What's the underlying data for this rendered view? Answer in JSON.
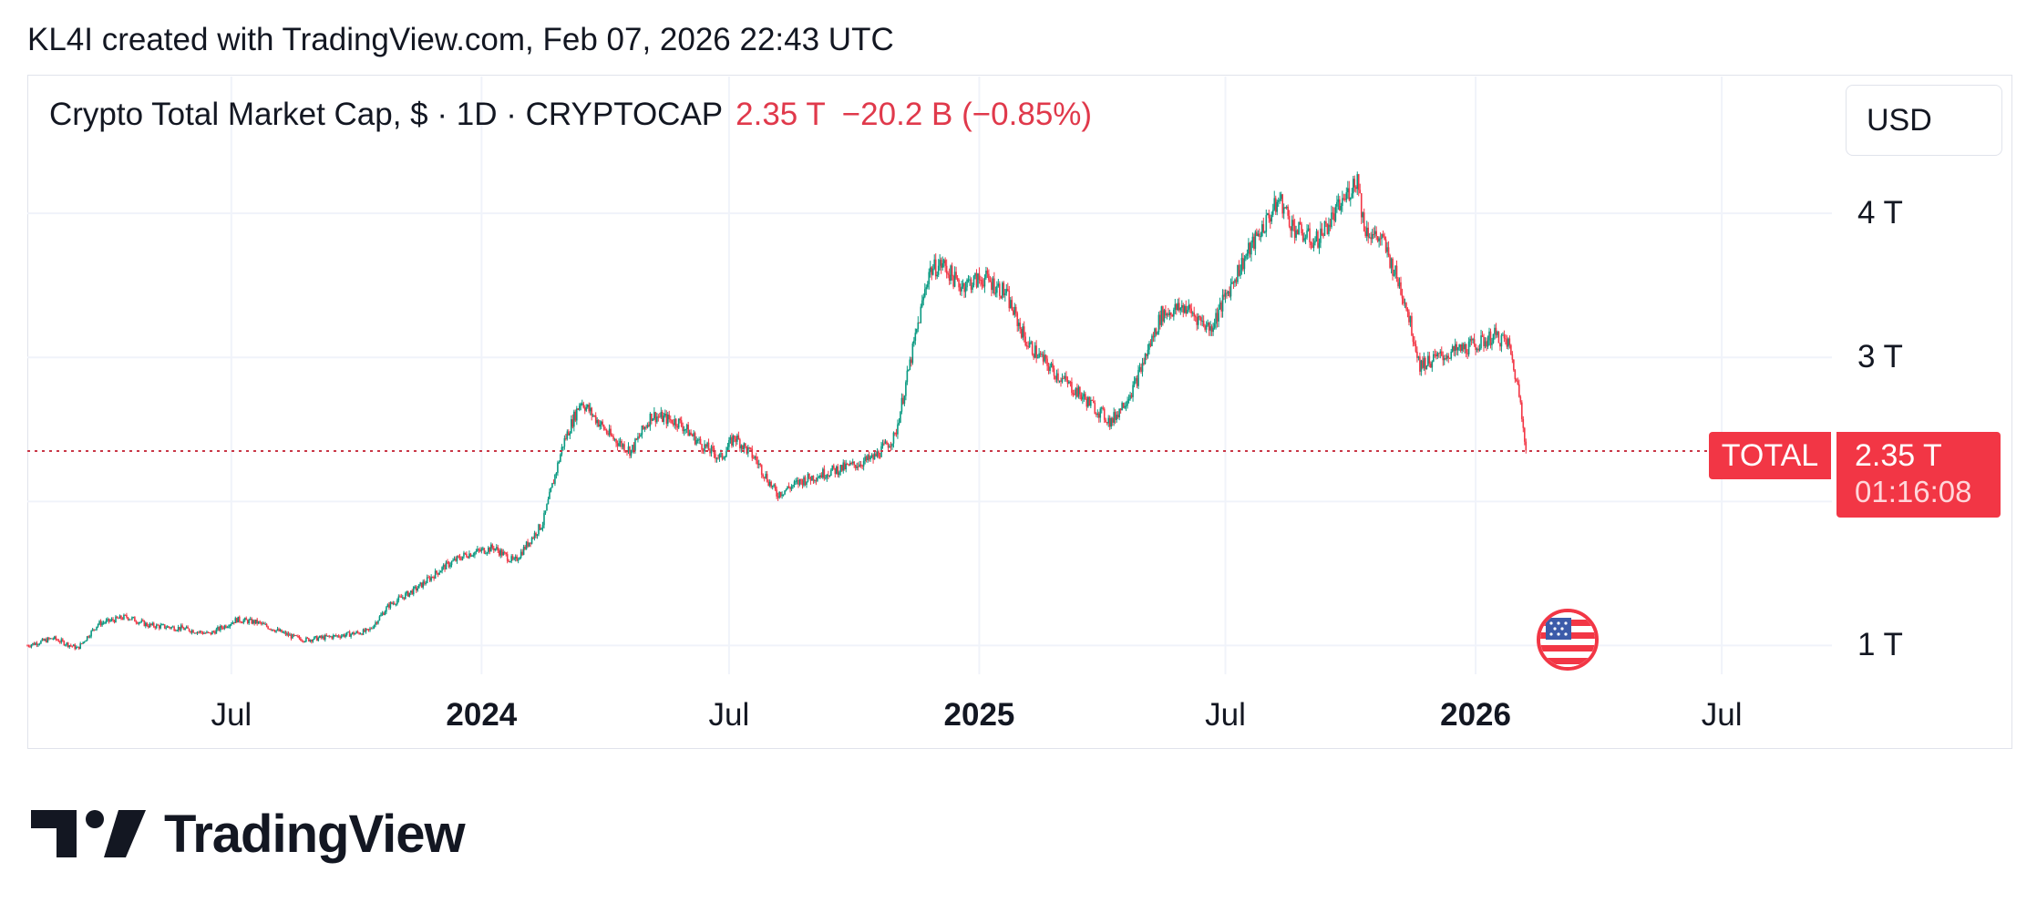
{
  "header": {
    "attribution": "KL4I created with TradingView.com, Feb 07, 2026 22:43 UTC"
  },
  "legend": {
    "symbol": "Crypto Total Market Cap, $ · 1D · CRYPTOCAP",
    "last": "2.35 T",
    "change": "−20.2 B (−0.85%)"
  },
  "toolbar": {
    "currency_label": "USD"
  },
  "price_tag": {
    "series": "TOTAL",
    "price": "2.35 T",
    "countdown": "01:16:08"
  },
  "brand": {
    "name": "TradingView"
  },
  "colors": {
    "up": "#089981",
    "down": "#f23645",
    "grid": "#f0f3fa",
    "text": "#131722"
  },
  "chart_data": {
    "type": "line",
    "style": "candlestick",
    "title": "Crypto Total Market Cap, $ · 1D · CRYPTOCAP",
    "y_unit": "T",
    "ylim": [
      0.8,
      4.95
    ],
    "y_ticks": [
      {
        "value": 1,
        "label": "1 T"
      },
      {
        "value": 3,
        "label": "3 T"
      },
      {
        "value": 4,
        "label": "4 T"
      }
    ],
    "xlim": [
      "2023-02-01",
      "2026-09-20"
    ],
    "x_ticks": [
      {
        "date": "2023-07-01",
        "label": "Jul",
        "bold": false
      },
      {
        "date": "2024-01-01",
        "label": "2024",
        "bold": true
      },
      {
        "date": "2024-07-01",
        "label": "Jul",
        "bold": false
      },
      {
        "date": "2025-01-01",
        "label": "2025",
        "bold": true
      },
      {
        "date": "2025-07-01",
        "label": "Jul",
        "bold": false
      },
      {
        "date": "2026-01-01",
        "label": "2026",
        "bold": true
      },
      {
        "date": "2026-07-01",
        "label": "Jul",
        "bold": false
      }
    ],
    "last_price": 2.35,
    "grid": true,
    "series": [
      {
        "x": [
          "2023-02-01",
          "2023-02-20",
          "2023-03-10",
          "2023-03-25",
          "2023-04-15",
          "2023-05-01",
          "2023-05-25",
          "2023-06-15",
          "2023-07-05",
          "2023-07-20",
          "2023-08-15",
          "2023-08-25",
          "2023-09-20",
          "2023-10-10",
          "2023-10-25",
          "2023-11-15",
          "2023-12-05",
          "2023-12-20",
          "2024-01-10",
          "2024-01-25",
          "2024-02-15",
          "2024-03-01",
          "2024-03-14",
          "2024-04-05",
          "2024-04-20",
          "2024-05-05",
          "2024-05-25",
          "2024-06-10",
          "2024-06-25",
          "2024-07-05",
          "2024-07-20",
          "2024-08-05",
          "2024-08-25",
          "2024-09-10",
          "2024-09-30",
          "2024-10-15",
          "2024-10-31",
          "2024-11-12",
          "2024-11-25",
          "2024-12-05",
          "2024-12-17",
          "2025-01-05",
          "2025-01-20",
          "2025-02-05",
          "2025-02-25",
          "2025-03-15",
          "2025-04-08",
          "2025-04-25",
          "2025-05-15",
          "2025-06-01",
          "2025-06-20",
          "2025-07-10",
          "2025-07-25",
          "2025-08-10",
          "2025-08-20",
          "2025-09-05",
          "2025-09-20",
          "2025-10-06",
          "2025-10-11",
          "2025-10-25",
          "2025-11-10",
          "2025-11-21",
          "2025-12-05",
          "2025-12-20",
          "2026-01-05",
          "2026-01-15",
          "2026-01-25",
          "2026-02-02",
          "2026-02-05",
          "2026-02-07"
        ],
        "y": [
          1.0,
          1.05,
          0.98,
          1.15,
          1.2,
          1.14,
          1.12,
          1.08,
          1.18,
          1.16,
          1.06,
          1.04,
          1.07,
          1.1,
          1.28,
          1.4,
          1.55,
          1.63,
          1.68,
          1.58,
          1.85,
          2.4,
          2.7,
          2.45,
          2.35,
          2.6,
          2.55,
          2.4,
          2.3,
          2.45,
          2.3,
          2.05,
          2.15,
          2.2,
          2.25,
          2.3,
          2.45,
          3.0,
          3.6,
          3.65,
          3.5,
          3.55,
          3.45,
          3.1,
          2.9,
          2.75,
          2.55,
          2.8,
          3.3,
          3.35,
          3.2,
          3.6,
          3.85,
          4.1,
          3.9,
          3.8,
          4.0,
          4.25,
          3.9,
          3.8,
          3.4,
          2.95,
          3.0,
          3.05,
          3.1,
          3.15,
          3.1,
          2.75,
          2.55,
          2.35
        ]
      }
    ]
  }
}
